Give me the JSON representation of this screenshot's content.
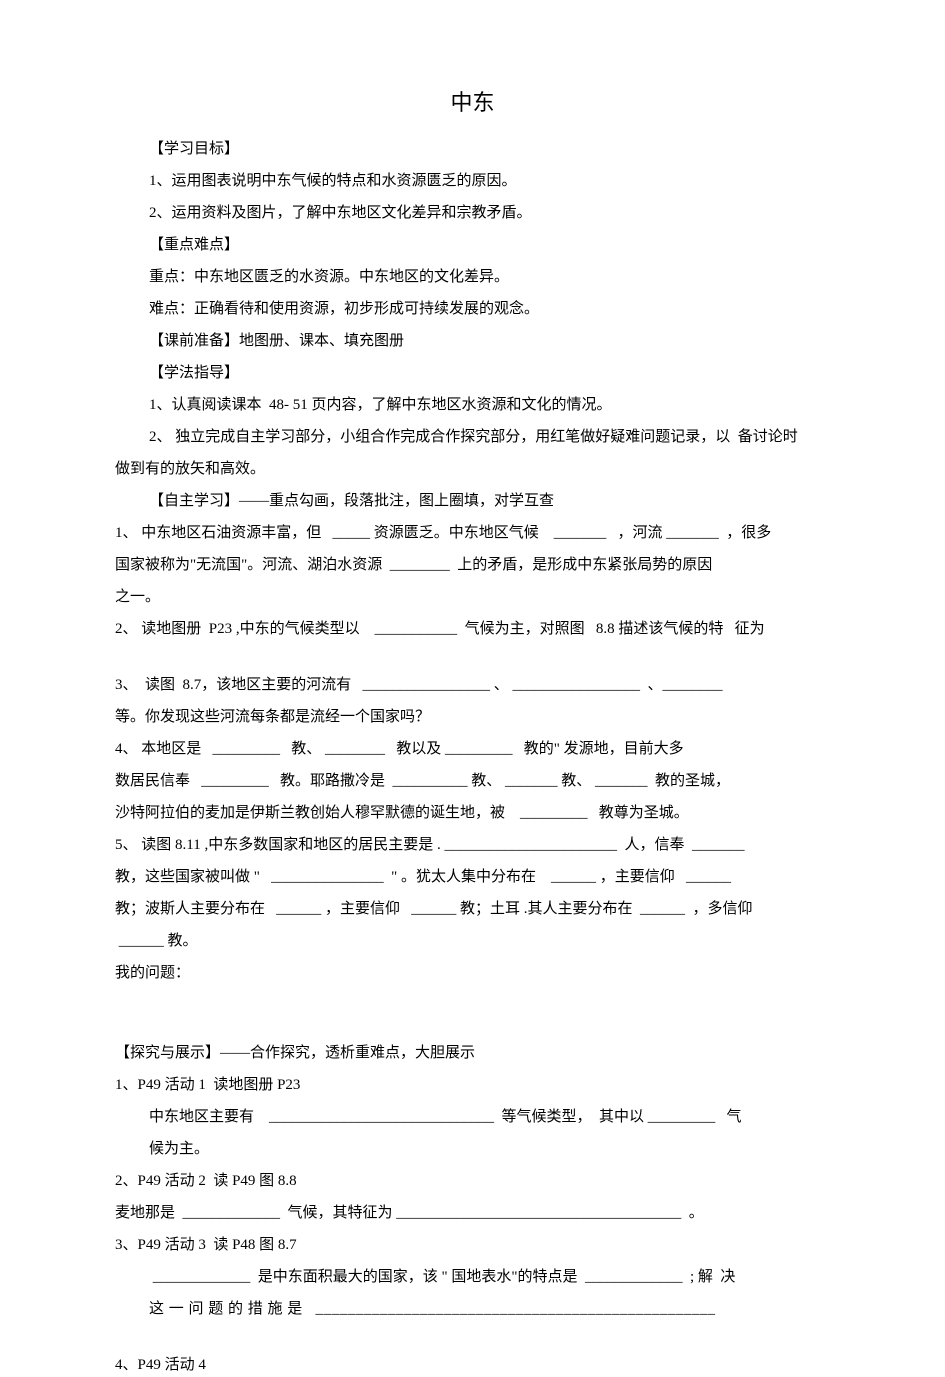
{
  "title": "中东",
  "title_fontsize": 22,
  "body_fontsize": 15,
  "line_height": 24,
  "text_color": "#000000",
  "background_color": "#ffffff",
  "font_family": "SimSun, '宋体', serif",
  "sections": {
    "heading_objectives": "【学习目标】",
    "obj1": "1、运用图表说明中东气候的特点和水资源匮乏的原因。",
    "obj2": "2、运用资料及图片，了解中东地区文化差异和宗教矛盾。",
    "heading_keypoints": "【重点难点】",
    "kp1": "重点：中东地区匮乏的水资源。中东地区的文化差异。",
    "kp2": "难点：正确看待和使用资源，初步形成可持续发展的观念。",
    "prep": "【课前准备】地图册、课本、填充图册",
    "heading_method": "【学法指导】",
    "method1": "1、认真阅读课本  48- 51 页内容，了解中东地区水资源和文化的情况。",
    "method2a": "2、 独立完成自主学习部分，小组合作完成合作探究部分，用红笔做好疑难问题记录，以  备讨论时",
    "method2b": "做到有的放矢和高效。",
    "heading_selfstudy": "【自主学习】——重点勾画，段落批注，图上圈填，对学互查",
    "s1a": "1、 中东地区石油资源丰富，但   _____ 资源匮乏。中东地区气候    _______   ，河流 _______  ，很多",
    "s1b": "国家被称为\"无流国\"。河流、湖泊水资源  ________  上的矛盾，是形成中东紧张局势的原因",
    "s1c": "之一。",
    "s2a": "2、 读地图册  P23 ,中东的气候类型以    ___________  气候为主，对照图   8.8 描述该气候的特   征为",
    "s3a": "3、  读图  8.7，该地区主要的河流有   _________________ 、 _________________  、________",
    "s3b": "等。你发现这些河流每条都是流经一个国家吗？",
    "s4a": "4、 本地区是   _________   教、 ________   教以及 _________   教的\" 发源地，目前大多",
    "s4b": "数居民信奉   _________   教。耶路撒冷是  __________ 教、 _______ 教、 _______  教的圣城，",
    "s4c": "沙特阿拉伯的麦加是伊斯兰教创始人穆罕默德的诞生地，被    _________   教尊为圣城。",
    "s5a": "5、 读图 8.11 ,中东多数国家和地区的居民主要是 . _______________________  人，信奉  _______",
    "s5b": "教，这些国家被叫做 \"   _______________  \" 。犹太人集中分布在    ______ ，主要信仰   ______",
    "s5c": "教；波斯人主要分布在   ______ ，主要信仰   ______ 教；土耳 .其人主要分布在  ______  ，多信仰",
    "s5d": " ______ 教。",
    "myq": "我的问题：",
    "heading_explore": "【探究与展示】——合作探究，透析重难点，大胆展示",
    "e1a": "1、P49 活动 1  读地图册 P23",
    "e1b": "中东地区主要有    ______________________________  等气候类型，  其中以 _________   气",
    "e1c": "候为主。",
    "e2a": "2、P49 活动 2  读 P49 图 8.8",
    "e2b": "麦地那是  _____________  气候，其特征为 ______________________________________  。",
    "e3a": "3、P49 活动 3  读 P48 图 8.7",
    "e3b": " _____________  是中东面积最大的国家，该 \" 国地表水\"的特点是  _____________  ; 解  决",
    "e3c": "这 一 问 题 的 措 施 是   __________________________________________________",
    "e4a": "4、P49 活动 4"
  }
}
